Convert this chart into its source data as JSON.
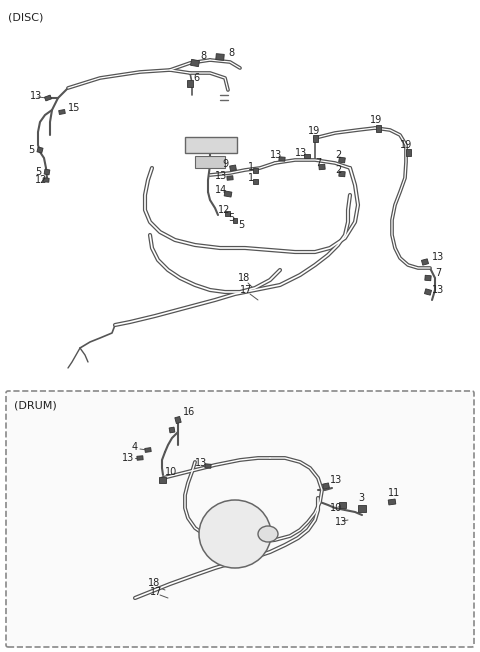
{
  "bg_color": "#ffffff",
  "line_color": "#555555",
  "dark_color": "#333333",
  "label_color": "#222222",
  "disc_label": "(DISC)",
  "drum_label": "(DRUM)",
  "figsize": [
    4.8,
    6.52
  ],
  "dpi": 100,
  "tube_lw": 2.0,
  "hose_lw": 1.5
}
